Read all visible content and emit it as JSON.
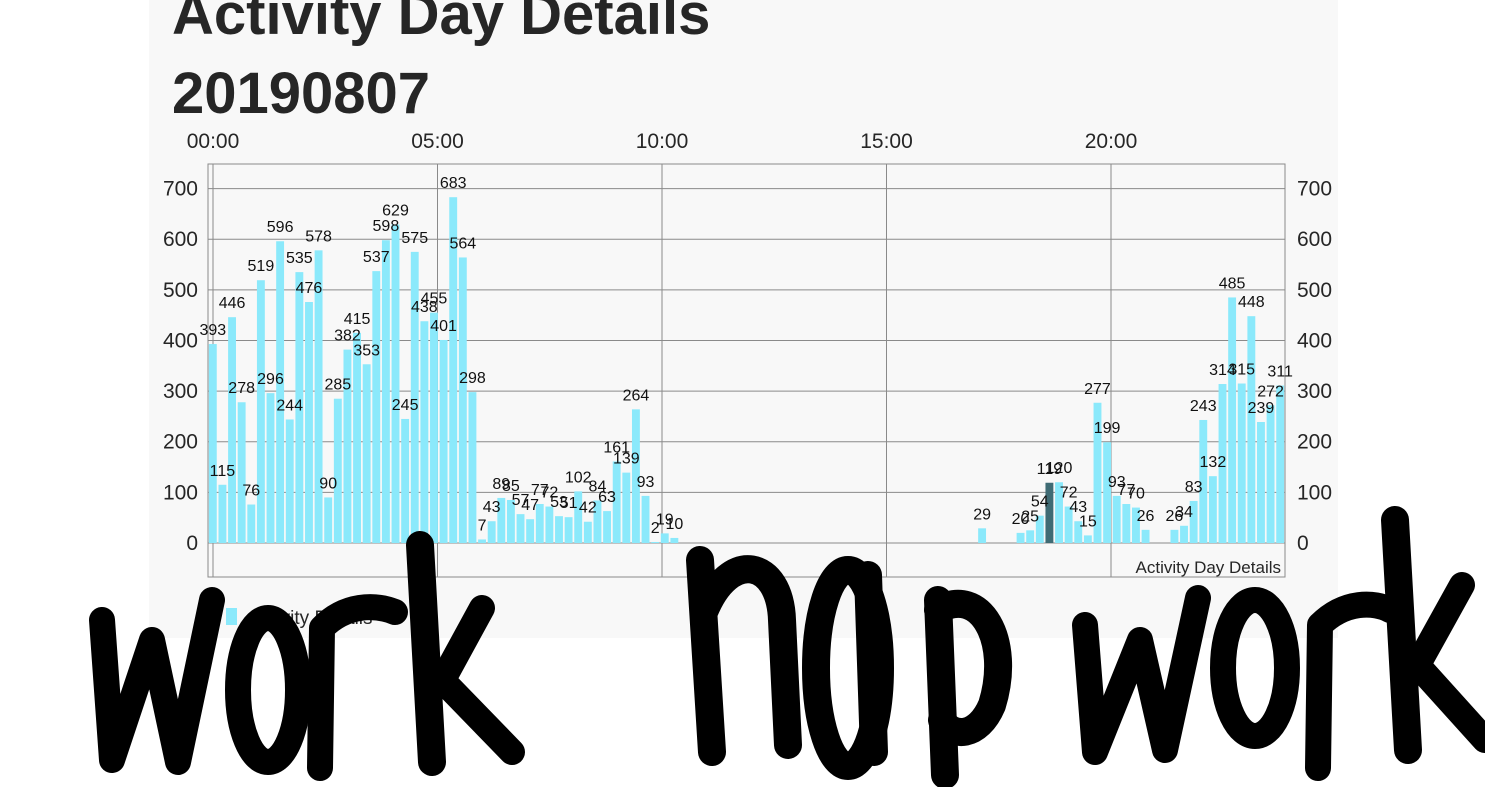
{
  "page": {
    "title": "Activity Day Details",
    "date": "20190807"
  },
  "colors": {
    "bar": "#8be9fb",
    "bar_highlight": "#3f6b74",
    "grid": "#8a8a8a",
    "card_background": "#f8f8f8",
    "text": "#262626",
    "handwriting": "#000000"
  },
  "handwriting": [
    "work",
    "nap",
    "work"
  ],
  "chart_data": {
    "type": "bar",
    "title": "Activity Day Details",
    "x_axis": {
      "label_position": "top",
      "tick_labels": [
        "00:00",
        "05:00",
        "10:00",
        "15:00",
        "20:00"
      ],
      "range_hours": [
        0,
        24
      ]
    },
    "y_axis": {
      "ticks": [
        0,
        100,
        200,
        300,
        400,
        500,
        600,
        700
      ],
      "ylim": [
        0,
        700
      ],
      "shown_on": [
        "left",
        "right"
      ]
    },
    "grid": true,
    "legend": {
      "position": "bottom-left",
      "entries": [
        "Activity Details"
      ]
    },
    "description_label": "Activity Day Details",
    "interval_minutes": 15,
    "series": [
      {
        "name": "Activity Details",
        "color": "#8be9fb",
        "values": [
          393,
          115,
          446,
          278,
          76,
          519,
          296,
          596,
          244,
          535,
          476,
          578,
          90,
          285,
          382,
          415,
          353,
          537,
          598,
          629,
          245,
          575,
          438,
          455,
          401,
          683,
          564,
          298,
          7,
          43,
          89,
          85,
          57,
          47,
          77,
          72,
          53,
          51,
          102,
          42,
          84,
          63,
          161,
          139,
          264,
          93,
          2,
          19,
          10,
          0,
          0,
          0,
          0,
          0,
          0,
          0,
          0,
          0,
          0,
          0,
          0,
          0,
          0,
          0,
          0,
          0,
          0,
          0,
          0,
          0,
          0,
          0,
          0,
          0,
          0,
          0,
          0,
          0,
          0,
          0,
          29,
          0,
          0,
          0,
          20,
          25,
          54,
          119,
          120,
          72,
          43,
          15,
          277,
          199,
          93,
          77,
          70,
          26,
          0,
          0,
          26,
          34,
          83,
          243,
          132,
          314,
          485,
          315,
          448,
          239,
          272,
          311
        ],
        "label_values": [
          "393",
          "115",
          "446",
          "278",
          "76",
          "519",
          "296",
          "596",
          "244",
          "535",
          "476",
          "578",
          "90",
          "285",
          "382",
          "415",
          "353",
          "537",
          "598",
          "629",
          "245",
          "575",
          "438",
          "455",
          "401",
          "683",
          "564",
          "298",
          "7",
          "43",
          "89",
          "85",
          "57",
          "47",
          "77",
          "72",
          "53",
          "51",
          "102",
          "42",
          "84",
          "63",
          "161",
          "139",
          "264",
          "93",
          "2",
          "19",
          "10",
          "",
          "",
          "",
          "",
          "",
          "",
          "",
          "",
          "",
          "",
          "",
          "",
          "",
          "",
          "",
          "",
          "",
          "",
          "",
          "",
          "",
          "",
          "",
          "",
          "",
          "",
          "",
          "",
          "",
          "",
          "",
          "29",
          "",
          "",
          "",
          "20",
          "25",
          "54",
          "119",
          "120",
          "72",
          "43",
          "15",
          "277",
          "199",
          "93",
          "77",
          "70",
          "26",
          "",
          "",
          "26",
          "34",
          "83",
          "243",
          "132",
          "314",
          "485",
          "315",
          "448",
          "239",
          "272",
          "311"
        ],
        "highlight_index": 87
      }
    ]
  }
}
